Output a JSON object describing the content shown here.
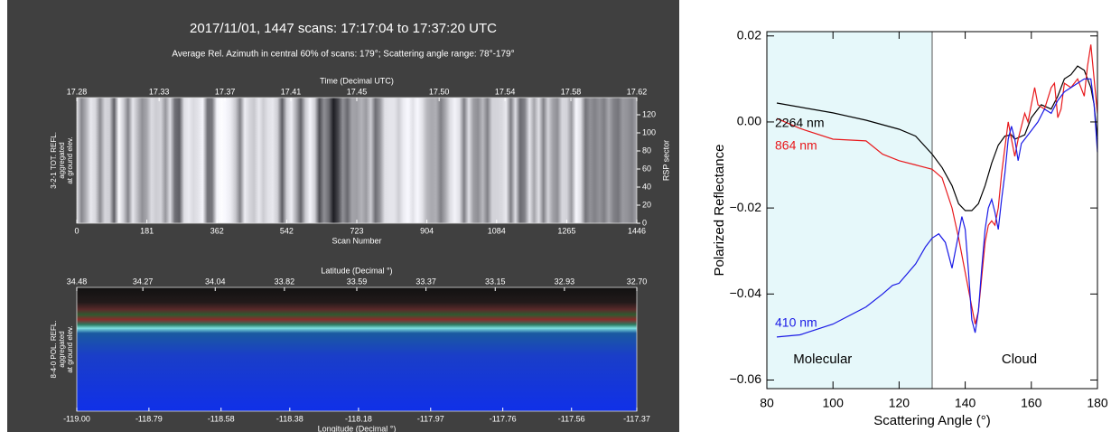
{
  "chart_data": [
    {
      "type": "image",
      "title": "2017/11/01, 1447 scans: 17:17:04 to 17:37:20 UTC",
      "subtitle": "Average Rel. Azimuth in central 60% of scans: 179°; Scattering angle range: 78°-179°",
      "top_axis": {
        "label": "Time (Decimal UTC)",
        "lim": [
          17.28,
          17.62
        ],
        "ticks": [
          17.28,
          17.33,
          17.37,
          17.41,
          17.45,
          {
            "value": 17.5,
            "label": "17.50"
          },
          17.54,
          17.58,
          17.62
        ]
      },
      "bottom_axis": {
        "label": "Scan Number",
        "lim": [
          0,
          1446
        ],
        "ticks": [
          0,
          181,
          362,
          542,
          723,
          904,
          1084,
          1265,
          1446
        ]
      },
      "right_axis": {
        "label": "RSP sector",
        "lim": [
          0,
          139
        ],
        "ticks": [
          0,
          20,
          40,
          60,
          80,
          100,
          120
        ]
      },
      "ylabel": [
        "3-2-1 TOT. REFL.",
        "aggregated",
        "at ground elev."
      ]
    },
    {
      "type": "image",
      "top_axis": {
        "label": "Latitude (Decimal °)",
        "lim": [
          34.48,
          32.7
        ],
        "ticks": [
          34.48,
          34.27,
          34.04,
          33.82,
          33.59,
          33.37,
          33.15,
          32.93,
          {
            "value": 32.7,
            "label": "32.70"
          }
        ]
      },
      "bottom_axis": {
        "label": "Longitude (Decimal °)",
        "lim": [
          -119,
          -117.37
        ],
        "ticks": [
          {
            "value": -119,
            "label": "-119.00"
          },
          -118.79,
          -118.58,
          -118.38,
          -118.18,
          -117.97,
          -117.76,
          -117.56,
          -117.37
        ]
      },
      "ylabel": [
        "8-4-0 POL. REFL.",
        "aggregated",
        "at ground elev."
      ]
    },
    {
      "type": "line",
      "xlabel": "Scattering Angle (°)",
      "ylabel": "Polarized Reflectance",
      "xlim": [
        80,
        180
      ],
      "ylim": [
        -0.062,
        0.021
      ],
      "xticks": [
        80,
        100,
        120,
        140,
        160,
        180
      ],
      "yticks": [
        {
          "value": -0.06,
          "label": "−0.06"
        },
        {
          "value": -0.04,
          "label": "−0.04"
        },
        {
          "value": -0.02,
          "label": "−0.02"
        },
        {
          "value": 0,
          "label": "0.00"
        },
        0.02
      ],
      "shaded_region": {
        "x": [
          80,
          130
        ],
        "label": "Molecular",
        "color": "#e6f8fa"
      },
      "annotation": "Cloud",
      "series": [
        {
          "name": "2264 nm",
          "color": "#000000",
          "x": [
            83,
            100,
            110,
            120,
            125,
            130,
            133,
            136,
            138,
            140,
            142,
            144,
            146,
            148,
            150,
            152,
            154,
            155,
            158,
            160,
            163,
            166,
            168,
            170,
            172,
            174,
            176,
            178,
            179,
            180
          ],
          "values": [
            0.0044,
            0.0021,
            0.0004,
            -0.0017,
            -0.0033,
            -0.0075,
            -0.0106,
            -0.0148,
            -0.019,
            -0.0206,
            -0.0206,
            -0.019,
            -0.0148,
            -0.0096,
            -0.0054,
            -0.0033,
            -0.003,
            -0.004,
            -0.003,
            0.001,
            0.004,
            0.003,
            0.006,
            0.01,
            0.011,
            0.013,
            0.012,
            0.008,
            0.004,
            -0.004
          ]
        },
        {
          "name": "864 nm",
          "color": "#e8191c",
          "x": [
            83,
            90,
            100,
            110,
            115,
            120,
            125,
            130,
            133,
            136,
            138,
            140,
            142,
            143,
            144,
            145,
            146,
            147,
            148,
            149,
            150,
            151,
            152,
            153,
            154,
            155,
            156,
            158,
            159,
            160,
            161,
            162,
            164,
            166,
            167,
            168,
            169,
            170,
            172,
            174,
            176,
            177,
            178,
            179,
            180
          ],
          "values": [
            0.0008,
            -0.0015,
            -0.004,
            -0.0044,
            -0.0075,
            -0.009,
            -0.01,
            -0.011,
            -0.013,
            -0.02,
            -0.027,
            -0.035,
            -0.043,
            -0.047,
            -0.044,
            -0.036,
            -0.028,
            -0.024,
            -0.023,
            -0.024,
            -0.02,
            -0.012,
            -0.006,
            0,
            -0.004,
            -0.008,
            -0.004,
            0.002,
            0,
            0.004,
            0.008,
            0.004,
            0.003,
            0.008,
            0.009,
            0.001,
            0.003,
            0.009,
            0.008,
            0.01,
            0.006,
            0.013,
            0.018,
            0.01,
            0.002
          ]
        },
        {
          "name": "410 nm",
          "color": "#1a1ae6",
          "x": [
            83,
            90,
            100,
            110,
            115,
            118,
            120,
            125,
            128,
            130,
            132,
            134,
            136,
            138,
            139,
            140,
            141,
            142,
            143,
            144,
            145,
            146,
            147,
            148,
            149,
            150,
            151,
            152,
            153,
            154,
            155,
            156,
            157,
            158,
            160,
            162,
            164,
            166,
            168,
            170,
            172,
            174,
            176,
            178,
            179,
            180
          ],
          "values": [
            -0.05,
            -0.0495,
            -0.047,
            -0.043,
            -0.04,
            -0.038,
            -0.0375,
            -0.033,
            -0.029,
            -0.027,
            -0.026,
            -0.028,
            -0.034,
            -0.026,
            -0.022,
            -0.025,
            -0.035,
            -0.046,
            -0.049,
            -0.044,
            -0.034,
            -0.025,
            -0.02,
            -0.018,
            -0.021,
            -0.025,
            -0.018,
            -0.012,
            -0.004,
            -0.001,
            -0.004,
            -0.009,
            -0.005,
            -0.004,
            -0.002,
            0,
            0.003,
            0.002,
            0.005,
            0.007,
            0.008,
            0.009,
            0.01,
            0.01,
            0.004,
            -0.007
          ]
        }
      ]
    }
  ]
}
